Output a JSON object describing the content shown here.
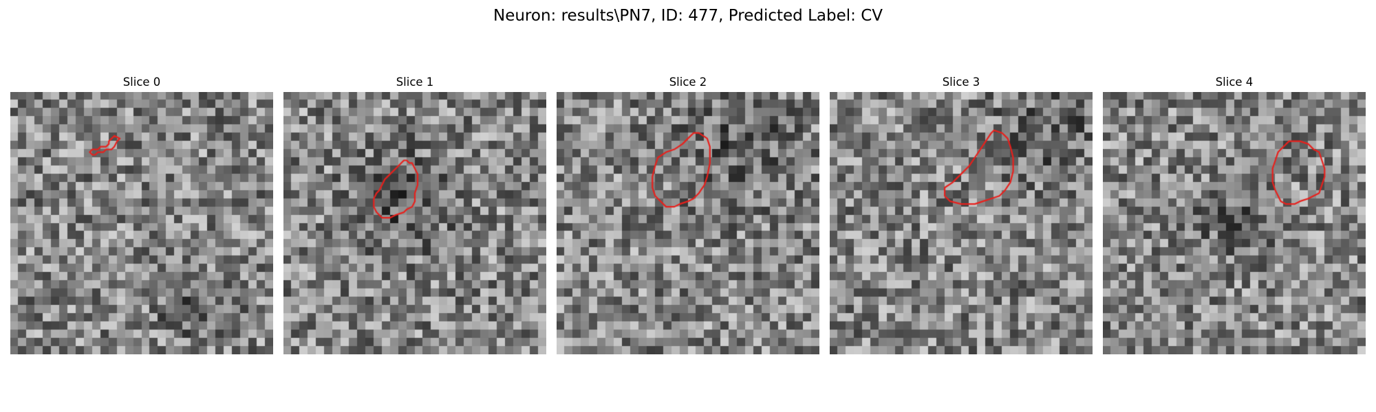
{
  "figure": {
    "title": "Neuron: results\\PN7, ID: 477, Predicted Label: CV"
  },
  "panels": [
    {
      "title": "Slice 0",
      "seed": 11,
      "dark_center": [
        0.72,
        0.82
      ],
      "dark_radius": 0.2,
      "contour": [
        [
          38,
          16
        ],
        [
          40,
          17
        ],
        [
          39,
          18
        ],
        [
          38,
          20
        ],
        [
          37,
          21
        ],
        [
          35,
          21
        ],
        [
          34,
          22
        ],
        [
          32,
          22
        ],
        [
          31,
          23
        ],
        [
          30,
          23
        ],
        [
          29,
          22
        ],
        [
          30,
          21
        ],
        [
          32,
          21
        ],
        [
          33,
          20
        ],
        [
          35,
          20
        ],
        [
          36,
          19
        ],
        [
          36,
          18
        ]
      ]
    },
    {
      "title": "Slice 1",
      "seed": 23,
      "dark_center": [
        0.45,
        0.42
      ],
      "dark_radius": 0.3,
      "contour": [
        [
          45,
          25
        ],
        [
          46,
          26
        ],
        [
          47,
          26
        ],
        [
          48,
          28
        ],
        [
          49,
          30
        ],
        [
          49,
          34
        ],
        [
          48,
          37
        ],
        [
          48,
          40
        ],
        [
          47,
          42
        ],
        [
          45,
          43
        ],
        [
          44,
          44
        ],
        [
          41,
          45
        ],
        [
          39,
          46
        ],
        [
          36,
          46
        ],
        [
          35,
          45
        ],
        [
          34,
          44
        ],
        [
          33,
          42
        ],
        [
          33,
          39
        ],
        [
          34,
          37
        ],
        [
          35,
          36
        ],
        [
          36,
          34
        ],
        [
          37,
          32
        ],
        [
          39,
          30
        ],
        [
          41,
          28
        ],
        [
          43,
          26
        ],
        [
          44,
          25
        ]
      ]
    },
    {
      "title": "Slice 2",
      "seed": 37,
      "dark_center": [
        0.7,
        0.2
      ],
      "dark_radius": 0.35,
      "contour": [
        [
          52,
          15
        ],
        [
          55,
          17
        ],
        [
          56,
          20
        ],
        [
          56,
          26
        ],
        [
          55,
          31
        ],
        [
          54,
          34
        ],
        [
          52,
          37
        ],
        [
          50,
          39
        ],
        [
          48,
          40
        ],
        [
          45,
          41
        ],
        [
          43,
          42
        ],
        [
          40,
          42
        ],
        [
          38,
          40
        ],
        [
          36,
          38
        ],
        [
          35,
          35
        ],
        [
          35,
          31
        ],
        [
          36,
          27
        ],
        [
          37,
          24
        ],
        [
          40,
          22
        ],
        [
          43,
          21
        ],
        [
          46,
          19
        ],
        [
          48,
          17
        ],
        [
          50,
          15
        ]
      ]
    },
    {
      "title": "Slice 3",
      "seed": 41,
      "dark_center": [
        0.85,
        0.15
      ],
      "dark_radius": 0.3,
      "contour": [
        [
          60,
          14
        ],
        [
          63,
          15
        ],
        [
          65,
          17
        ],
        [
          66,
          20
        ],
        [
          67,
          24
        ],
        [
          67,
          29
        ],
        [
          66,
          33
        ],
        [
          64,
          36
        ],
        [
          62,
          38
        ],
        [
          59,
          39
        ],
        [
          56,
          40
        ],
        [
          53,
          41
        ],
        [
          48,
          41
        ],
        [
          44,
          40
        ],
        [
          42,
          38
        ],
        [
          42,
          35
        ],
        [
          45,
          33
        ],
        [
          48,
          30
        ],
        [
          51,
          27
        ],
        [
          53,
          24
        ],
        [
          55,
          21
        ],
        [
          57,
          18
        ],
        [
          59,
          15
        ]
      ]
    },
    {
      "title": "Slice 4",
      "seed": 53,
      "dark_center": [
        0.5,
        0.5
      ],
      "dark_radius": 0.2,
      "contour": [
        [
          69,
          18
        ],
        [
          72,
          18
        ],
        [
          75,
          19
        ],
        [
          77,
          21
        ],
        [
          79,
          22
        ],
        [
          80,
          25
        ],
        [
          81,
          28
        ],
        [
          81,
          31
        ],
        [
          80,
          34
        ],
        [
          79,
          37
        ],
        [
          77,
          38
        ],
        [
          75,
          39
        ],
        [
          72,
          40
        ],
        [
          70,
          41
        ],
        [
          67,
          41
        ],
        [
          65,
          40
        ],
        [
          64,
          38
        ],
        [
          63,
          36
        ],
        [
          62,
          33
        ],
        [
          62,
          28
        ],
        [
          63,
          25
        ],
        [
          64,
          22
        ],
        [
          66,
          20
        ],
        [
          68,
          18
        ]
      ]
    }
  ],
  "colors": {
    "contour": "#e8201c",
    "background": "#ffffff"
  }
}
